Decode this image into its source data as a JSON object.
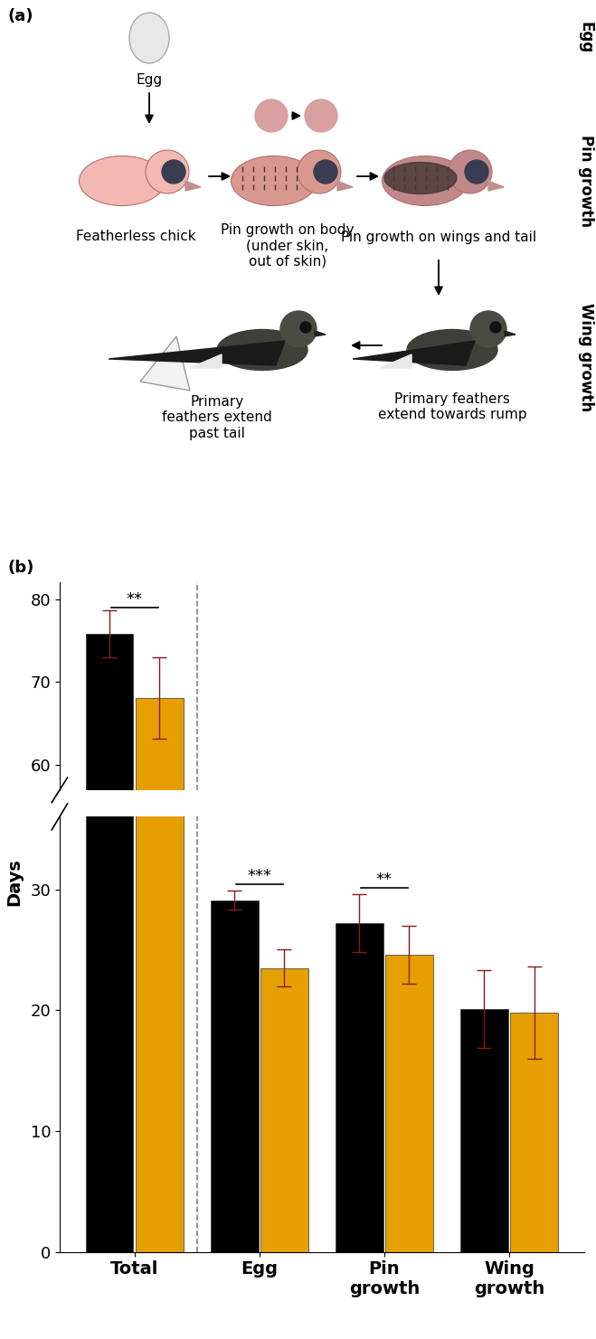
{
  "panel_labels": [
    "(a)",
    "(b)"
  ],
  "diagram": {
    "stages": [
      "Egg",
      "Pin growth",
      "Wing growth"
    ],
    "steps": [
      "Egg",
      "Featherless chick",
      "Pin growth on body\n(under skin,\nout of skin)",
      "Pin growth on wings and tail",
      "Primary feathers\nextend towards rump",
      "Primary\nfeathers extend\npast tail"
    ]
  },
  "chart_data": {
    "type": "bar",
    "ylabel": "Days",
    "categories": [
      "Total",
      "Egg",
      "Pin\ngrowth",
      "Wing\ngrowth"
    ],
    "series": [
      {
        "color": "#000000",
        "values": [
          75.8,
          29.1,
          27.2,
          20.1
        ],
        "errors": [
          2.8,
          0.8,
          2.4,
          3.2
        ]
      },
      {
        "color": "#E69F00",
        "values": [
          68.1,
          23.5,
          24.6,
          19.8
        ],
        "errors": [
          4.9,
          1.5,
          2.4,
          3.8
        ]
      }
    ],
    "significance": [
      "**",
      "***",
      "**",
      null
    ],
    "ylim": [
      0,
      82
    ],
    "axis_break": [
      36,
      57
    ],
    "yticks": [
      0,
      10,
      20,
      30,
      60,
      70,
      80
    ],
    "grid": false
  }
}
